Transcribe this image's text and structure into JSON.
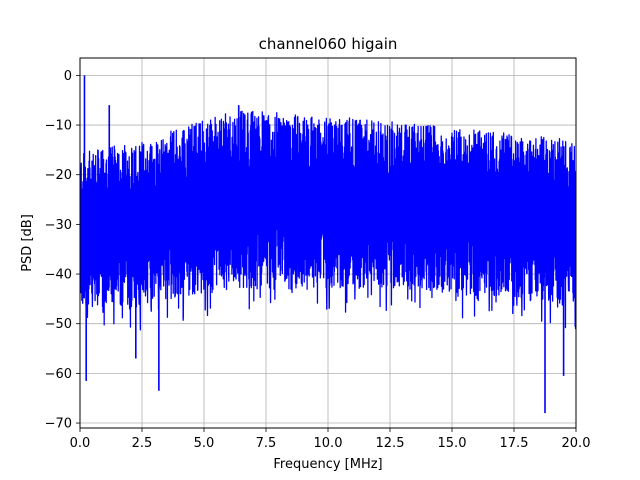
{
  "chart_data": {
    "type": "line",
    "title": "channel060 higain",
    "xlabel": "Frequency [MHz]",
    "ylabel": "PSD [dB]",
    "xlim": [
      0,
      20
    ],
    "ylim": [
      -71,
      3.5
    ],
    "grid": true,
    "xticks": [
      0,
      2.5,
      5,
      7.5,
      10,
      12.5,
      15,
      17.5,
      20
    ],
    "xtick_labels": [
      "0.0",
      "2.5",
      "5.0",
      "7.5",
      "10.0",
      "12.5",
      "15.0",
      "17.5",
      "20.0"
    ],
    "yticks": [
      0,
      -10,
      -20,
      -30,
      -40,
      -50,
      -60,
      -70
    ],
    "ytick_labels": [
      "0",
      "−10",
      "−20",
      "−30",
      "−40",
      "−50",
      "−60",
      "−70"
    ],
    "series": [
      {
        "color": "#0000ff",
        "envelope_x": [
          0,
          1,
          2,
          3,
          4,
          5,
          6,
          7,
          8,
          9,
          10,
          11,
          12,
          13,
          14,
          15,
          16,
          17,
          18,
          19,
          20
        ],
        "upper_db": [
          -17,
          -16,
          -15,
          -14,
          -12,
          -10,
          -9,
          -8.5,
          -9,
          -9.5,
          -10,
          -10,
          -10.5,
          -11,
          -11.5,
          -12,
          -12.5,
          -13,
          -13.5,
          -14,
          -14.5
        ],
        "lower_db": [
          -44,
          -45,
          -44,
          -43,
          -42,
          -41,
          -40,
          -40,
          -40,
          -40,
          -40,
          -40,
          -40,
          -40,
          -40.5,
          -41,
          -41.5,
          -42,
          -42.5,
          -43,
          -43
        ],
        "peaks": [
          {
            "x": 0.18,
            "y": 0
          },
          {
            "x": 0.25,
            "y": -61.5
          },
          {
            "x": 1.18,
            "y": -6
          },
          {
            "x": 2.25,
            "y": -57
          },
          {
            "x": 3.18,
            "y": -63.5
          },
          {
            "x": 6.4,
            "y": -6
          },
          {
            "x": 18.75,
            "y": -68
          },
          {
            "x": 19.5,
            "y": -60.5
          }
        ]
      }
    ]
  }
}
